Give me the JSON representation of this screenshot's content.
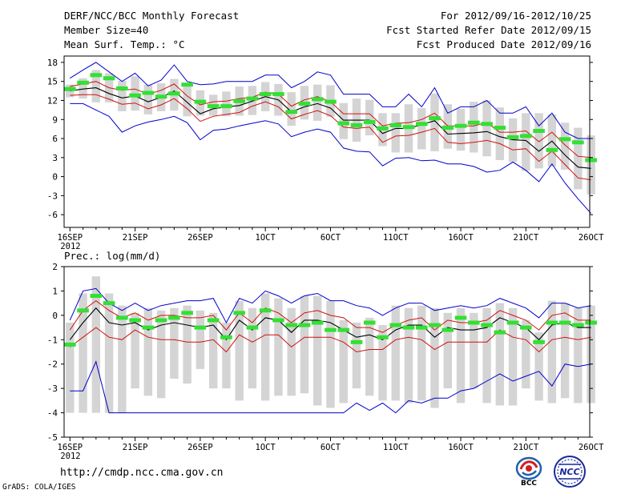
{
  "header": {
    "title": "DERF/NCC/BCC Monthly Forecast",
    "member_size": "Member Size=40",
    "variable": "Mean Surf. Temp.: °C",
    "period": "For 2012/09/16-2012/10/25",
    "started": "Fcst Started Refer Date 2012/09/15",
    "produced": "Fcst Produced Date 2012/09/16"
  },
  "footer": {
    "url": "http://cmdp.ncc.cma.gov.cn",
    "credit": "GrADS: COLA/IGES",
    "logo_bcc": "BCC",
    "logo_ncc": "NCC"
  },
  "colors": {
    "mean": "#000000",
    "spread": "#d01010",
    "extreme": "#0000cc",
    "median": "#33e033",
    "box": "#d4d4d4"
  },
  "chart_data": [
    {
      "type": "box",
      "title": "Mean Surf. Temp.: °C",
      "xlabel": "",
      "ylabel": "",
      "x_tick_labels": [
        "16SEP",
        "21SEP",
        "26SEP",
        "1OCT",
        "6OCT",
        "11OCT",
        "16OCT",
        "21OCT",
        "26OCT"
      ],
      "x_tick_sublabel": "2012",
      "ylim": [
        -8,
        19
      ],
      "yticks": [
        18,
        15,
        12,
        9,
        6,
        3,
        0,
        -3,
        -6
      ],
      "days": 40,
      "series": [
        {
          "name": "max",
          "values": [
            15.5,
            16.8,
            18,
            16.5,
            15,
            16.3,
            14.3,
            15.2,
            17.6,
            15,
            14.5,
            14.6,
            15,
            15,
            15,
            16,
            16,
            14,
            15,
            16.5,
            16,
            13,
            13,
            13,
            11,
            11,
            13,
            11,
            14,
            10,
            11,
            11,
            12,
            10,
            10,
            11,
            8,
            10,
            7,
            6,
            6
          ]
        },
        {
          "name": "mean_plus_sd",
          "values": [
            14.2,
            14.6,
            15,
            14,
            13.6,
            13.8,
            13,
            13.6,
            14.6,
            12.7,
            11.3,
            11.8,
            11.9,
            12.3,
            12.5,
            13.3,
            13,
            11.1,
            12.1,
            12.6,
            11.8,
            9.9,
            9.9,
            9.9,
            8,
            8.4,
            8.5,
            9,
            10,
            8,
            8,
            8,
            8.5,
            7,
            7,
            7.2,
            5.5,
            7,
            5,
            3.2,
            3
          ]
        },
        {
          "name": "mean",
          "values": [
            13.5,
            13.8,
            14,
            13.1,
            12.4,
            12.7,
            11.8,
            12.5,
            13.5,
            11.7,
            9.9,
            10.7,
            11,
            11.2,
            11.9,
            12.6,
            12.1,
            10.2,
            11,
            11.5,
            10.8,
            8.9,
            8.9,
            8.9,
            6.8,
            7.6,
            7.6,
            8.2,
            8.8,
            6.7,
            6.8,
            6.9,
            7.1,
            6.3,
            5.8,
            5.7,
            4,
            5.6,
            3.4,
            1.5,
            1.3
          ]
        },
        {
          "name": "mean_minus_sd",
          "values": [
            12.8,
            12.9,
            12.9,
            12.2,
            11.4,
            11.6,
            10.7,
            11.3,
            12.3,
            10.7,
            8.7,
            9.5,
            9.8,
            10.1,
            11.1,
            11.8,
            11,
            9.1,
            9.8,
            10.4,
            9.6,
            7.8,
            7.6,
            7.8,
            5.4,
            6.4,
            6.5,
            7,
            7.6,
            5.4,
            5.2,
            5.4,
            5.7,
            5.2,
            4.2,
            4.4,
            2.4,
            4,
            1.9,
            -0.2,
            -0.5
          ]
        },
        {
          "name": "min",
          "values": [
            11.5,
            11.5,
            10.5,
            9.5,
            7,
            8,
            8.6,
            9,
            9.5,
            8.5,
            5.8,
            7.3,
            7.5,
            8,
            8.4,
            8.8,
            8.3,
            6.3,
            7,
            7.5,
            7,
            4.5,
            4,
            3.9,
            1.7,
            2.9,
            3,
            2.5,
            2.6,
            2,
            2,
            1.6,
            0.7,
            1,
            2.3,
            1,
            -0.8,
            2,
            -1,
            -3.5,
            -5.8
          ]
        },
        {
          "name": "median",
          "values": [
            13.8,
            14.8,
            16,
            15.5,
            13.9,
            12.8,
            13.2,
            12.6,
            13.1,
            14.5,
            11.8,
            11.1,
            11.1,
            11.9,
            12.3,
            13,
            13,
            10.2,
            11.5,
            12.2,
            11.8,
            8.4,
            8.1,
            8.6,
            7.6,
            8.1,
            7.8,
            8.3,
            9.2,
            7.7,
            8,
            8.5,
            8.3,
            7.7,
            6.2,
            6.4,
            7.2,
            4.2,
            5.9,
            5.4,
            2.6
          ]
        },
        {
          "name": "box_top",
          "values": [
            14.5,
            15.5,
            16.8,
            16.3,
            15.1,
            15.8,
            14.5,
            14.7,
            15.4,
            14.6,
            13.6,
            12.9,
            13.4,
            14.2,
            14.3,
            14.9,
            14.6,
            13.3,
            14.3,
            14.5,
            14.4,
            11.6,
            12.3,
            12.1,
            10,
            10,
            11.4,
            10.8,
            13.1,
            11.4,
            10.7,
            11.8,
            12,
            10.9,
            9.2,
            10,
            10,
            9.8,
            8.5,
            7.7,
            6.5
          ]
        },
        {
          "name": "box_bottom",
          "values": [
            12.5,
            12.3,
            11.7,
            11.7,
            10.3,
            10.4,
            9.8,
            10.3,
            10.4,
            9.5,
            9.6,
            9.6,
            9.5,
            9.6,
            9.7,
            10.3,
            9.6,
            8,
            9,
            8.8,
            9.4,
            5.9,
            5.5,
            6.5,
            4.8,
            3.8,
            3.8,
            4.3,
            4,
            4.4,
            4.1,
            3.8,
            3.2,
            2.6,
            2.3,
            0.9,
            1.3,
            1.6,
            1.1,
            -2,
            -2.8
          ]
        }
      ]
    },
    {
      "type": "box",
      "title": "Prec.: log(mm/d)",
      "xlabel": "",
      "ylabel": "",
      "x_tick_labels": [
        "16SEP",
        "21SEP",
        "26SEP",
        "1OCT",
        "6OCT",
        "11OCT",
        "16OCT",
        "21OCT",
        "26OCT"
      ],
      "x_tick_sublabel": "2012",
      "ylim": [
        -5,
        2
      ],
      "yticks": [
        2,
        1,
        0,
        -1,
        -2,
        -3,
        -4,
        -5
      ],
      "days": 40,
      "series": [
        {
          "name": "max",
          "values": [
            -0.2,
            1,
            1.1,
            0.5,
            0.2,
            0.5,
            0.2,
            0.4,
            0.5,
            0.6,
            0.6,
            0.7,
            -0.3,
            0.7,
            0.5,
            1,
            0.8,
            0.5,
            0.8,
            0.9,
            0.6,
            0.6,
            0.4,
            0.3,
            0,
            0.3,
            0.5,
            0.5,
            0.2,
            0.3,
            0.4,
            0.3,
            0.4,
            0.7,
            0.5,
            0.3,
            -0.1,
            0.5,
            0.5,
            0.3,
            0.4
          ]
        },
        {
          "name": "mean_plus_sd",
          "values": [
            -0.6,
            0.2,
            0.6,
            0.2,
            -0.1,
            0.1,
            -0.2,
            0,
            0,
            -0.1,
            -0.1,
            0,
            -0.6,
            0.1,
            -0.3,
            0.3,
            0.1,
            -0.3,
            0.1,
            0.2,
            0,
            -0.1,
            -0.5,
            -0.5,
            -0.7,
            -0.4,
            -0.2,
            -0.1,
            -0.6,
            -0.2,
            -0.3,
            -0.3,
            -0.2,
            0.2,
            0,
            -0.2,
            -0.6,
            0,
            0.1,
            -0.2,
            -0.2
          ]
        },
        {
          "name": "mean",
          "values": [
            -1,
            -0.3,
            0.3,
            -0.3,
            -0.4,
            -0.3,
            -0.6,
            -0.4,
            -0.3,
            -0.4,
            -0.5,
            -0.4,
            -1,
            -0.2,
            -0.6,
            -0.1,
            -0.2,
            -0.7,
            -0.2,
            -0.2,
            -0.3,
            -0.6,
            -0.9,
            -0.8,
            -1,
            -0.6,
            -0.4,
            -0.4,
            -0.9,
            -0.5,
            -0.6,
            -0.6,
            -0.5,
            -0.1,
            -0.3,
            -0.5,
            -1,
            -0.4,
            -0.3,
            -0.5,
            -0.5
          ]
        },
        {
          "name": "mean_minus_sd",
          "values": [
            -1.3,
            -0.9,
            -0.5,
            -0.9,
            -1,
            -0.6,
            -0.9,
            -1,
            -1,
            -1.1,
            -1.1,
            -1,
            -1.5,
            -0.8,
            -1.1,
            -0.8,
            -0.8,
            -1.3,
            -0.9,
            -0.9,
            -0.9,
            -1.1,
            -1.5,
            -1.4,
            -1.4,
            -1,
            -0.9,
            -1,
            -1.4,
            -1.1,
            -1.1,
            -1.1,
            -1.1,
            -0.6,
            -0.9,
            -1,
            -1.5,
            -1,
            -0.9,
            -1,
            -0.9
          ]
        },
        {
          "name": "min",
          "values": [
            -3.1,
            -3.1,
            -1.9,
            -4,
            -4,
            -4,
            -4,
            -4,
            -4,
            -4,
            -4,
            -4,
            -4,
            -4,
            -4,
            -4,
            -4,
            -4,
            -4,
            -4,
            -4,
            -4,
            -3.6,
            -3.9,
            -3.6,
            -4,
            -3.5,
            -3.6,
            -3.4,
            -3.4,
            -3.1,
            -3.0,
            -2.7,
            -2.4,
            -2.7,
            -2.5,
            -2.3,
            -2.9,
            -2.0,
            -2.1,
            -2.0
          ]
        },
        {
          "name": "median",
          "values": [
            -1.2,
            0.2,
            0.8,
            0.5,
            -0.1,
            -0.2,
            -0.5,
            -0.2,
            -0.1,
            0.1,
            -0.5,
            -0.2,
            -0.9,
            0.1,
            -0.5,
            0.2,
            -0.2,
            -0.4,
            -0.4,
            -0.3,
            -0.6,
            -0.6,
            -1.1,
            -0.3,
            -0.9,
            -0.4,
            -0.5,
            -0.5,
            -0.4,
            -0.6,
            -0.1,
            -0.3,
            -0.4,
            -0.7,
            -0.3,
            -0.5,
            -1.1,
            -0.3,
            -0.3,
            -0.4,
            -0.3
          ]
        },
        {
          "name": "box_top",
          "values": [
            -0.3,
            0.9,
            1.6,
            0.9,
            0.4,
            0.1,
            0.3,
            0.2,
            0.3,
            0.4,
            0.2,
            0.1,
            -0.3,
            0.6,
            0.3,
            0.9,
            0.7,
            0.3,
            0.8,
            0.8,
            0.6,
            -0.2,
            -0.3,
            -0.1,
            -0.4,
            0.4,
            0.3,
            0.4,
            0.3,
            0.1,
            0.3,
            0.1,
            0.3,
            0.5,
            0.3,
            -0.2,
            -0.7,
            0.6,
            0.5,
            0.3,
            0.4
          ]
        },
        {
          "name": "box_bottom",
          "values": [
            -4,
            -4,
            -4,
            -4,
            -4,
            -3,
            -3.3,
            -3.4,
            -2.6,
            -2.8,
            -2.2,
            -3,
            -3,
            -3.5,
            -3,
            -3.5,
            -3.3,
            -3.3,
            -3.2,
            -3.7,
            -3.8,
            -3.6,
            -3,
            -3.3,
            -3.5,
            -3.5,
            -3.6,
            -3.5,
            -3.8,
            -3,
            -3.6,
            -3,
            -3.6,
            -3.7,
            -3.7,
            -3,
            -3.5,
            -3.6,
            -3.4,
            -3.6,
            -3.6
          ]
        }
      ]
    }
  ]
}
